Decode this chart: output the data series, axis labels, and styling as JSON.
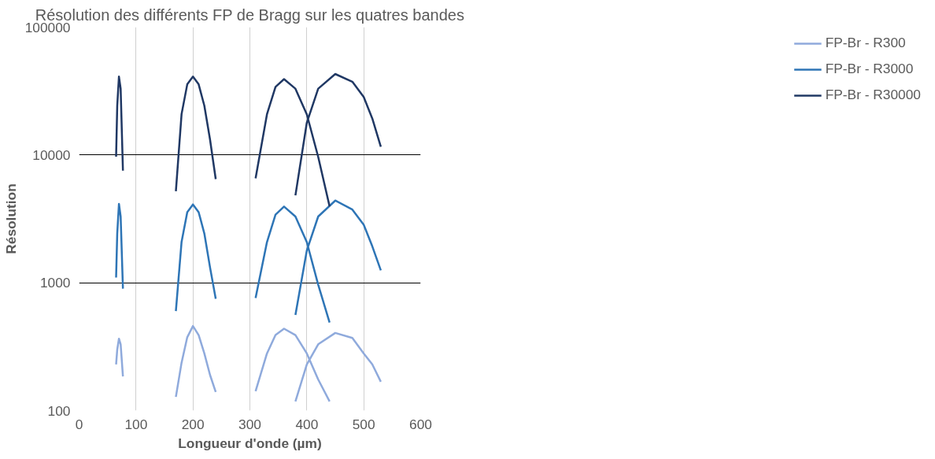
{
  "chart_data": {
    "type": "line",
    "title": "Résolution des différents FP de Bragg sur les quatres bandes",
    "xlabel": "Longueur d'onde (µm)",
    "ylabel": "Résolution",
    "log": "y",
    "xlim": [
      0,
      600
    ],
    "xticks": [
      0,
      100,
      200,
      300,
      400,
      500,
      600
    ],
    "ylim": [
      100,
      100000
    ],
    "yticks": [
      100,
      1000,
      10000,
      100000
    ],
    "grid": true,
    "legend": "right",
    "line_style": "solid",
    "marker": "none",
    "x": [
      65,
      67,
      70,
      73,
      77,
      null,
      170,
      180,
      190,
      200,
      210,
      220,
      230,
      240,
      null,
      310,
      330,
      345,
      360,
      380,
      400,
      420,
      440,
      null,
      380,
      400,
      420,
      450,
      480,
      500,
      515,
      530
    ],
    "series": [
      {
        "name": "FP-Br - R300",
        "color": "#8faadc",
        "values": [
          230,
          300,
          365,
          330,
          185,
          null,
          128,
          237,
          375,
          459,
          390,
          280,
          190,
          140,
          null,
          142,
          280,
          390,
          437,
          390,
          280,
          175,
          118,
          null,
          118,
          230,
          330,
          405,
          370,
          280,
          230,
          168
        ]
      },
      {
        "name": "FP-Br - R3000",
        "color": "#2e75b6",
        "values": [
          1100,
          2430,
          4140,
          3300,
          900,
          null,
          600,
          2090,
          3570,
          4100,
          3570,
          2430,
          1320,
          750,
          null,
          760,
          2080,
          3410,
          3950,
          3300,
          2080,
          966,
          489,
          null,
          560,
          1790,
          3300,
          4400,
          3740,
          2840,
          1930,
          1250
        ]
      },
      {
        "name": "FP-Br - R30000",
        "color": "#203864",
        "values": [
          9700,
          24300,
          41000,
          33000,
          7540,
          null,
          5200,
          20900,
          35700,
          41000,
          35700,
          24300,
          13200,
          6470,
          null,
          6560,
          20800,
          34100,
          39200,
          33000,
          20800,
          9660,
          3960,
          null,
          4830,
          17900,
          33000,
          43000,
          37400,
          28400,
          19300,
          11600
        ]
      }
    ]
  }
}
